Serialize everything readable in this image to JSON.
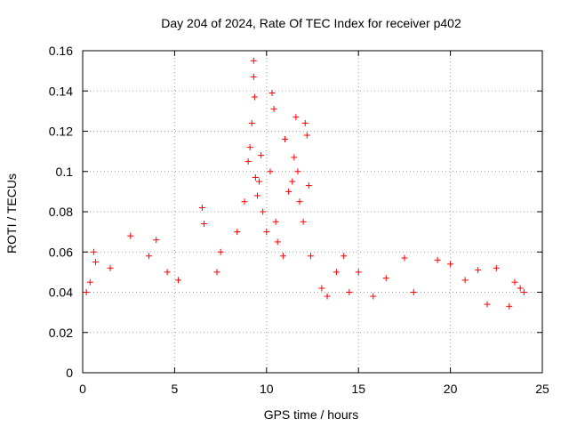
{
  "chart_data": {
    "type": "scatter",
    "title": "Day 204 of 2024, Rate Of TEC Index for receiver p402",
    "xlabel": "GPS time / hours",
    "ylabel": "ROTI / TECUs",
    "xlim": [
      0,
      25
    ],
    "ylim": [
      0,
      0.16
    ],
    "xticks": [
      0,
      5,
      10,
      15,
      20,
      25
    ],
    "xtick_labels": [
      "0",
      "5",
      "10",
      "15",
      "20",
      "25"
    ],
    "yticks": [
      0,
      0.02,
      0.04,
      0.06,
      0.08,
      0.1,
      0.12,
      0.14,
      0.16
    ],
    "ytick_labels": [
      "0",
      "0.02",
      "0.04",
      "0.06",
      "0.08",
      "0.1",
      "0.12",
      "0.14",
      "0.16"
    ],
    "grid": true,
    "marker": "plus",
    "marker_color": "#ff0000",
    "series": [
      {
        "name": "ROTI",
        "x": [
          0.2,
          0.4,
          0.6,
          0.7,
          1.5,
          2.6,
          3.6,
          4.0,
          4.6,
          5.2,
          6.5,
          6.6,
          7.3,
          7.5,
          8.4,
          8.8,
          9.0,
          9.1,
          9.2,
          9.3,
          9.3,
          9.35,
          9.4,
          9.5,
          9.6,
          9.7,
          9.8,
          10.0,
          10.2,
          10.3,
          10.4,
          10.5,
          10.6,
          10.9,
          11.0,
          11.2,
          11.4,
          11.5,
          11.6,
          11.7,
          11.8,
          12.0,
          12.1,
          12.2,
          12.3,
          12.4,
          13.0,
          13.3,
          13.8,
          14.2,
          14.5,
          15.0,
          15.8,
          16.5,
          17.5,
          18.0,
          19.3,
          20.0,
          20.8,
          21.5,
          22.0,
          22.5,
          23.2,
          23.5,
          23.8,
          24.0
        ],
        "y": [
          0.04,
          0.045,
          0.06,
          0.055,
          0.052,
          0.068,
          0.058,
          0.066,
          0.05,
          0.046,
          0.082,
          0.074,
          0.05,
          0.06,
          0.07,
          0.085,
          0.105,
          0.112,
          0.124,
          0.155,
          0.147,
          0.137,
          0.097,
          0.088,
          0.095,
          0.108,
          0.08,
          0.07,
          0.1,
          0.139,
          0.131,
          0.075,
          0.065,
          0.058,
          0.116,
          0.09,
          0.095,
          0.107,
          0.127,
          0.1,
          0.085,
          0.075,
          0.124,
          0.118,
          0.093,
          0.058,
          0.042,
          0.038,
          0.05,
          0.058,
          0.04,
          0.05,
          0.038,
          0.047,
          0.057,
          0.04,
          0.056,
          0.054,
          0.046,
          0.051,
          0.034,
          0.052,
          0.033,
          0.045,
          0.042,
          0.04
        ]
      }
    ]
  }
}
